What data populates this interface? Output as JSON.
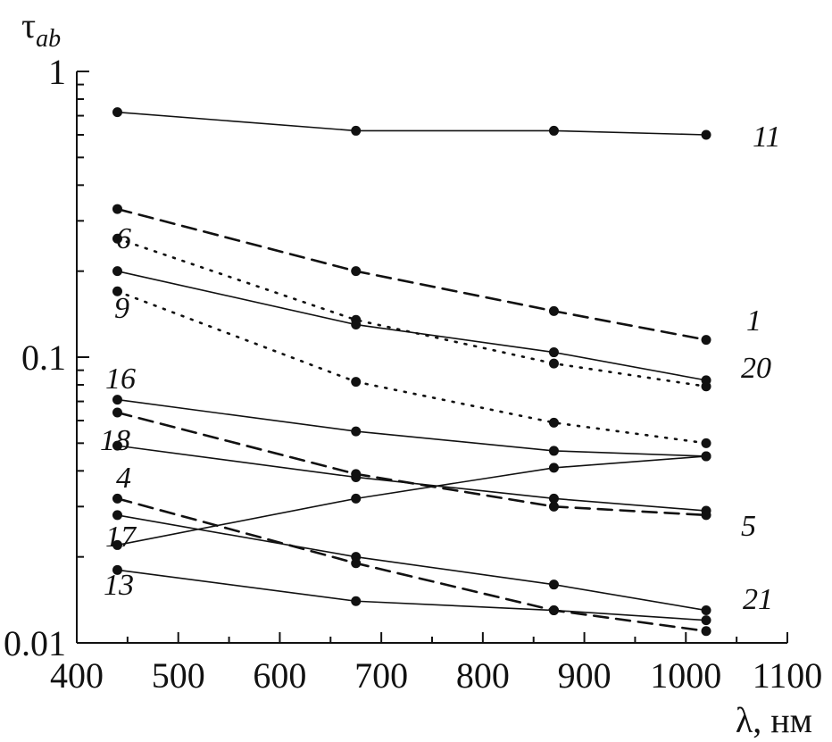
{
  "chart_data": {
    "type": "line",
    "y_scale": "log",
    "grid": false,
    "xlim": [
      400,
      1100
    ],
    "ylim": [
      0.01,
      1
    ],
    "x_ticks": [
      "400",
      "500",
      "600",
      "700",
      "800",
      "900",
      "1000",
      "1100"
    ],
    "y_ticks": [
      "0.01",
      "0.1",
      "1"
    ],
    "ylabel": "τ",
    "ylabel_sub": "ab",
    "xlabel": "λ, нм",
    "x": [
      440,
      675,
      870,
      1020
    ],
    "series": [
      {
        "name": "11",
        "style": "solid",
        "values": [
          0.72,
          0.62,
          0.62,
          0.6
        ]
      },
      {
        "name": "1",
        "style": "dashed",
        "values": [
          0.33,
          0.2,
          0.145,
          0.115
        ]
      },
      {
        "name": "6",
        "style": "dotted",
        "values": [
          0.26,
          0.135,
          0.095,
          0.079
        ]
      },
      {
        "name": "20",
        "style": "solid",
        "values": [
          0.2,
          0.13,
          0.104,
          0.083
        ]
      },
      {
        "name": "9",
        "style": "dotted",
        "values": [
          0.17,
          0.082,
          0.059,
          0.05
        ]
      },
      {
        "name": "16",
        "style": "solid",
        "values": [
          0.071,
          0.055,
          0.047,
          0.045
        ]
      },
      {
        "name": "5",
        "style": "dashed",
        "values": [
          0.064,
          0.039,
          0.03,
          0.028
        ]
      },
      {
        "name": "18",
        "style": "solid",
        "values": [
          0.049,
          0.038,
          0.032,
          0.029
        ]
      },
      {
        "name": "",
        "style": "solid",
        "values": [
          0.022,
          0.032,
          0.041,
          0.045
        ]
      },
      {
        "name": "4",
        "style": "dashed",
        "values": [
          0.032,
          0.019,
          0.013,
          0.011
        ]
      },
      {
        "name": "17",
        "style": "solid",
        "values": [
          0.028,
          0.02,
          0.016,
          0.013
        ]
      },
      {
        "name": "13",
        "style": "solid",
        "values": [
          0.018,
          0.014,
          0.013,
          0.012
        ]
      }
    ],
    "labels": [
      "11",
      "1",
      "6",
      "9",
      "20",
      "16",
      "18",
      "4",
      "5",
      "17",
      "13",
      "21"
    ]
  }
}
